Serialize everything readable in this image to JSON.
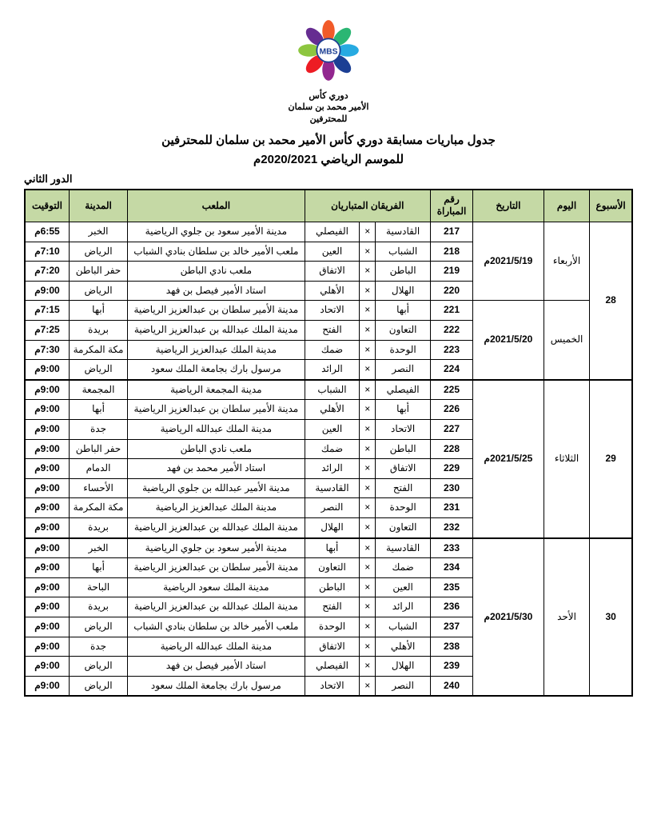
{
  "logo": {
    "center_text": "MBS",
    "line1": "دوري كأس",
    "line2": "الأمير محمد بن سلمان",
    "line3": "للمحترفين",
    "petal_colors": [
      "#f15a29",
      "#2bb673",
      "#27aae1",
      "#1c3f94",
      "#92278f",
      "#ed1c24",
      "#8dc63f",
      "#662d91"
    ]
  },
  "title_line1": "جدول مباريات مسابقة دوري كأس الأمير محمد بن سلمان للمحترفين",
  "title_line2": "للموسم الرياضي 2020/2021م",
  "round_label": "الدور الثاني",
  "headers": {
    "week": "الأسبوع",
    "day": "اليوم",
    "date": "التاريخ",
    "match_no": "رقم المباراة",
    "teams": "الفريقان المتباريان",
    "venue": "الملعب",
    "city": "المدينة",
    "time": "التوقيت"
  },
  "vs": "×",
  "weeks": [
    {
      "week": "28",
      "groups": [
        {
          "day": "الأربعاء",
          "date": "2021/5/19م",
          "matches": [
            {
              "no": "217",
              "home": "القادسية",
              "away": "الفيصلي",
              "venue": "مدينة الأمير سعود بن جلوي الرياضية",
              "city": "الخبر",
              "time": "6:55م"
            },
            {
              "no": "218",
              "home": "الشباب",
              "away": "العين",
              "venue": "ملعب الأمير خالد بن سلطان بنادي الشباب",
              "city": "الرياض",
              "time": "7:10م"
            },
            {
              "no": "219",
              "home": "الباطن",
              "away": "الاتفاق",
              "venue": "ملعب نادي الباطن",
              "city": "حفر الباطن",
              "time": "7:20م"
            },
            {
              "no": "220",
              "home": "الهلال",
              "away": "الأهلي",
              "venue": "استاد الأمير فيصل بن فهد",
              "city": "الرياض",
              "time": "9:00م"
            }
          ]
        },
        {
          "day": "الخميس",
          "date": "2021/5/20م",
          "matches": [
            {
              "no": "221",
              "home": "أبها",
              "away": "الاتحاد",
              "venue": "مدينة الأمير سلطان بن عبدالعزيز الرياضية",
              "city": "أبها",
              "time": "7:15م"
            },
            {
              "no": "222",
              "home": "التعاون",
              "away": "الفتح",
              "venue": "مدينة الملك عبدالله بن عبدالعزيز الرياضية",
              "city": "بريدة",
              "time": "7:25م"
            },
            {
              "no": "223",
              "home": "الوحدة",
              "away": "ضمك",
              "venue": "مدينة الملك عبدالعزيز الرياضية",
              "city": "مكة المكرمة",
              "time": "7:30م"
            },
            {
              "no": "224",
              "home": "النصر",
              "away": "الرائد",
              "venue": "مرسول بارك بجامعة الملك سعود",
              "city": "الرياض",
              "time": "9:00م"
            }
          ]
        }
      ]
    },
    {
      "week": "29",
      "groups": [
        {
          "day": "الثلاثاء",
          "date": "2021/5/25م",
          "matches": [
            {
              "no": "225",
              "home": "الفيصلي",
              "away": "الشباب",
              "venue": "مدينة المجمعة الرياضية",
              "city": "المجمعة",
              "time": "9:00م"
            },
            {
              "no": "226",
              "home": "أبها",
              "away": "الأهلي",
              "venue": "مدينة الأمير سلطان بن عبدالعزيز الرياضية",
              "city": "أبها",
              "time": "9:00م"
            },
            {
              "no": "227",
              "home": "الاتحاد",
              "away": "العين",
              "venue": "مدينة الملك عبدالله الرياضية",
              "city": "جدة",
              "time": "9:00م"
            },
            {
              "no": "228",
              "home": "الباطن",
              "away": "ضمك",
              "venue": "ملعب نادي الباطن",
              "city": "حفر الباطن",
              "time": "9:00م"
            },
            {
              "no": "229",
              "home": "الاتفاق",
              "away": "الرائد",
              "venue": "استاد الأمير محمد بن فهد",
              "city": "الدمام",
              "time": "9:00م"
            },
            {
              "no": "230",
              "home": "الفتح",
              "away": "القادسية",
              "venue": "مدينة الأمير عبدالله بن جلوي الرياضية",
              "city": "الأحساء",
              "time": "9:00م"
            },
            {
              "no": "231",
              "home": "الوحدة",
              "away": "النصر",
              "venue": "مدينة الملك عبدالعزيز الرياضية",
              "city": "مكة المكرمة",
              "time": "9:00م"
            },
            {
              "no": "232",
              "home": "التعاون",
              "away": "الهلال",
              "venue": "مدينة الملك عبدالله بن عبدالعزيز الرياضية",
              "city": "بريدة",
              "time": "9:00م"
            }
          ]
        }
      ]
    },
    {
      "week": "30",
      "groups": [
        {
          "day": "الأحد",
          "date": "2021/5/30م",
          "matches": [
            {
              "no": "233",
              "home": "القادسية",
              "away": "أبها",
              "venue": "مدينة الأمير سعود بن جلوي الرياضية",
              "city": "الخبر",
              "time": "9:00م"
            },
            {
              "no": "234",
              "home": "ضمك",
              "away": "التعاون",
              "venue": "مدينة الأمير سلطان بن عبدالعزيز الرياضية",
              "city": "أبها",
              "time": "9:00م"
            },
            {
              "no": "235",
              "home": "العين",
              "away": "الباطن",
              "venue": "مدينة الملك سعود الرياضية",
              "city": "الباحة",
              "time": "9:00م"
            },
            {
              "no": "236",
              "home": "الرائد",
              "away": "الفتح",
              "venue": "مدينة الملك عبدالله بن عبدالعزيز الرياضية",
              "city": "بريدة",
              "time": "9:00م"
            },
            {
              "no": "237",
              "home": "الشباب",
              "away": "الوحدة",
              "venue": "ملعب الأمير خالد بن سلطان بنادي الشباب",
              "city": "الرياض",
              "time": "9:00م"
            },
            {
              "no": "238",
              "home": "الأهلي",
              "away": "الاتفاق",
              "venue": "مدينة الملك عبدالله الرياضية",
              "city": "جدة",
              "time": "9:00م"
            },
            {
              "no": "239",
              "home": "الهلال",
              "away": "الفيصلي",
              "venue": "استاد الأمير فيصل بن فهد",
              "city": "الرياض",
              "time": "9:00م"
            },
            {
              "no": "240",
              "home": "النصر",
              "away": "الاتحاد",
              "venue": "مرسول بارك بجامعة الملك سعود",
              "city": "الرياض",
              "time": "9:00م"
            }
          ]
        }
      ]
    }
  ]
}
